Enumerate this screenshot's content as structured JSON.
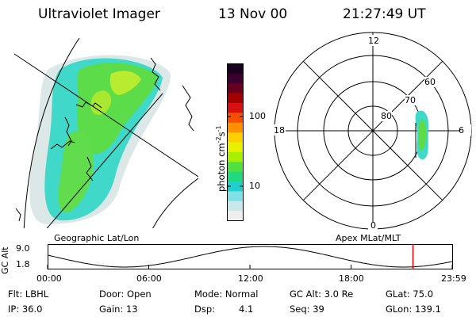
{
  "header": {
    "instrument": "Ultraviolet Imager",
    "date": "13 Nov 00",
    "time": "21:27:49 UT"
  },
  "colorbar": {
    "label_text": "photon cm",
    "label_sup1": "-2",
    "label_mid": "s",
    "label_sup2": "-1",
    "ticks": [
      "100",
      "10"
    ],
    "colors": [
      "#1a0020",
      "#3c0030",
      "#6a0020",
      "#a40000",
      "#d81010",
      "#f45000",
      "#ff9000",
      "#ffd000",
      "#e8f000",
      "#a8f000",
      "#50e040",
      "#20d880",
      "#20d0d0",
      "#80e0e8",
      "#c8e8ec",
      "#eeeeee"
    ]
  },
  "left_panel": {
    "caption": "Geographic Lat/Lon"
  },
  "polar_plot": {
    "caption": "Apex MLat/MLT",
    "mlt_labels": {
      "top": "12",
      "left": "18",
      "right": "6",
      "bottom": "0"
    },
    "lat_labels": [
      "60",
      "70",
      "80"
    ]
  },
  "altitude_plot": {
    "ylabel": "GC Alt",
    "yticks": [
      "9.0",
      "1.8"
    ],
    "xticks": [
      "00:00",
      "06:00",
      "12:00",
      "18:00",
      "23:59"
    ],
    "current_marker_fraction": 0.903
  },
  "status": {
    "flt": "Flt: LBHL",
    "ip": "IP: 36.0",
    "door": "Door: Open",
    "gain": "Gain: 13",
    "mode": "Mode: Normal",
    "dsp_label": "Dsp:",
    "dsp_value": "4.1",
    "gc_alt": "GC Alt: 3.0 Re",
    "seq": "Seq: 39",
    "glat": "GLat:  75.0",
    "glon": "GLon: 139.1"
  }
}
